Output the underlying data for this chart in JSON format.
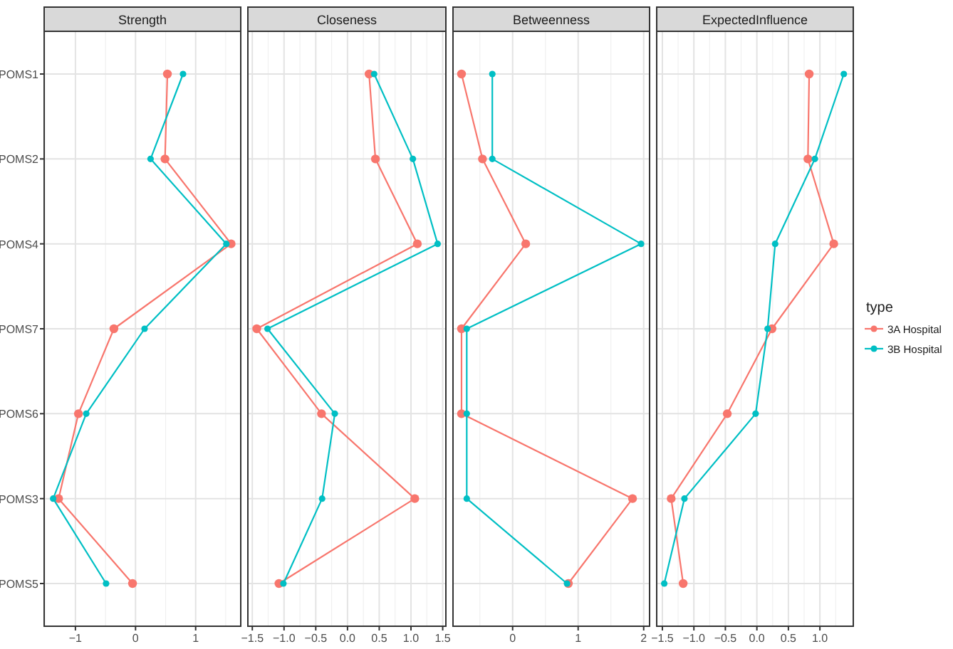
{
  "chart_data": [
    {
      "type": "line",
      "title": "Strength",
      "orientation": "horizontal",
      "categories": [
        "POMS1",
        "POMS2",
        "POMS4",
        "POMS7",
        "POMS6",
        "POMS3",
        "POMS5"
      ],
      "xlim": [
        -1.52,
        1.75
      ],
      "xticks": [
        -1,
        0,
        1
      ],
      "grid": true,
      "marker": "circle",
      "series": [
        {
          "color": "#f8766d",
          "values": [
            0.53,
            0.49,
            1.59,
            -0.36,
            -0.95,
            -1.28,
            -0.05
          ]
        },
        {
          "color": "#00bfc4",
          "values": [
            0.79,
            0.25,
            1.51,
            0.15,
            -0.82,
            -1.37,
            -0.49
          ]
        }
      ]
    },
    {
      "type": "line",
      "title": "Closeness",
      "orientation": "horizontal",
      "categories": [
        null,
        null,
        null,
        null,
        null,
        null,
        null
      ],
      "xlim": [
        -1.57,
        1.55
      ],
      "xticks": [
        {
          "value": -1.5,
          "label": "−1.5"
        },
        {
          "value": -1,
          "label": "−1.0"
        },
        {
          "value": -0.5,
          "label": "−0.5"
        },
        {
          "value": 0,
          "label": "0.0"
        },
        {
          "value": 0.5,
          "label": "0.5"
        },
        {
          "value": 1,
          "label": "1.0"
        },
        {
          "value": 1.5,
          "label": "1.5"
        }
      ],
      "grid": true,
      "marker": "circle",
      "tick_labels": "x",
      "series": [
        {
          "color": "#f8766d",
          "values": [
            0.34,
            0.44,
            1.1,
            -1.43,
            -0.41,
            1.06,
            -1.08
          ]
        },
        {
          "color": "#00bfc4",
          "values": [
            0.42,
            1.03,
            1.42,
            -1.26,
            -0.2,
            -0.4,
            -1.01
          ]
        }
      ]
    },
    {
      "type": "line",
      "title": "Betweenness",
      "orientation": "horizontal",
      "categories": [
        null,
        null,
        null,
        null,
        null,
        null,
        null
      ],
      "xlim": [
        -0.91,
        2.09
      ],
      "xticks": [
        0,
        1,
        2
      ],
      "grid": true,
      "marker": "circle",
      "tick_labels": "x",
      "series": [
        {
          "color": "#f8766d",
          "values": [
            -0.78,
            -0.46,
            0.2,
            -0.78,
            -0.78,
            1.83,
            0.85
          ]
        },
        {
          "color": "#00bfc4",
          "values": [
            -0.31,
            -0.31,
            1.96,
            -0.7,
            -0.7,
            -0.7,
            0.83
          ]
        }
      ]
    },
    {
      "type": "line",
      "title": "ExpectedInfluence",
      "orientation": "horizontal",
      "categories": [
        null,
        null,
        null,
        null,
        null,
        null,
        null
      ],
      "xlim": [
        -1.59,
        1.53
      ],
      "xticks": [
        {
          "value": -1.5,
          "label": "−1.5"
        },
        {
          "value": -1,
          "label": "−1.0"
        },
        {
          "value": -0.5,
          "label": "−0.5"
        },
        {
          "value": 0,
          "label": "0.0"
        },
        {
          "value": 0.5,
          "label": "0.5"
        },
        {
          "value": 1,
          "label": "1.0"
        }
      ],
      "grid": true,
      "marker": "circle",
      "tick_labels": "x",
      "legend": "right",
      "legend_title": "type",
      "series": [
        {
          "name": "3A Hospital",
          "color": "#f8766d",
          "values": [
            0.83,
            0.81,
            1.22,
            0.24,
            -0.47,
            -1.36,
            -1.17
          ]
        },
        {
          "name": "3B Hospital",
          "color": "#00bfc4",
          "values": [
            1.38,
            0.92,
            0.29,
            0.17,
            -0.02,
            -1.15,
            -1.47
          ]
        }
      ]
    }
  ]
}
